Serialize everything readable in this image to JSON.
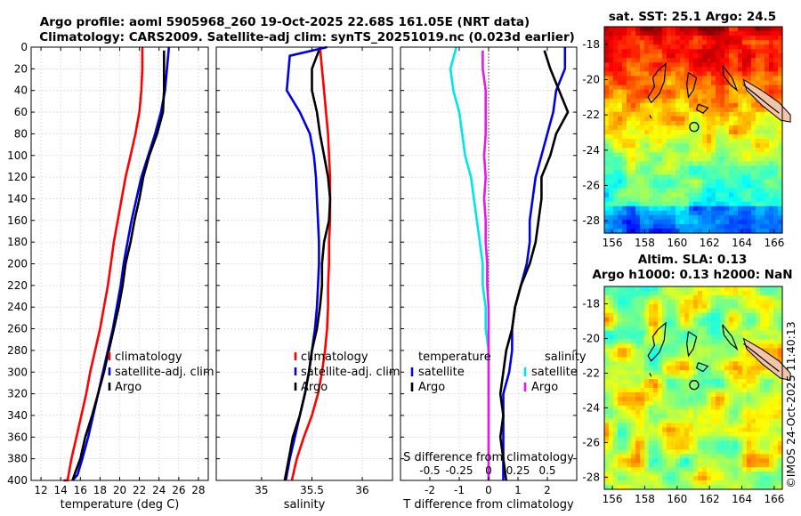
{
  "header": {
    "line1": "Argo profile: aoml 5905968_260 19-Oct-2025 22.68S 161.05E (NRT data)",
    "line2": "Climatology: CARS2009. Satellite-adj clim: synTS_20251019.nc (0.023d earlier)"
  },
  "colors": {
    "clim": "#ff0000",
    "sat": "#0000e6",
    "argo": "#000000",
    "sat_s": "#00e6e6",
    "sal_diff": "#e619e6",
    "land": "#f2c4a8"
  },
  "chart_data": [
    {
      "type": "line",
      "id": "temp",
      "title": "",
      "xlabel": "temperature (deg C)",
      "ylabel": "",
      "xlim": [
        11,
        29
      ],
      "ylim": [
        400,
        0
      ],
      "xticks": [
        12,
        14,
        16,
        18,
        20,
        22,
        24,
        26,
        28
      ],
      "yticks": [
        0,
        20,
        40,
        60,
        80,
        100,
        120,
        140,
        160,
        180,
        200,
        220,
        240,
        260,
        280,
        300,
        320,
        340,
        360,
        380,
        400
      ],
      "series": [
        {
          "name": "climatology",
          "color": "#ff0000",
          "x": [
            22.3,
            22.3,
            22.2,
            22.0,
            21.6,
            21.1,
            20.6,
            20.2,
            19.8,
            19.4,
            19.1,
            18.8,
            18.4,
            18.0,
            17.5,
            17.0,
            16.6,
            16.1,
            15.6,
            15.1,
            14.7,
            14.3
          ],
          "y": [
            0,
            20,
            40,
            60,
            80,
            100,
            120,
            140,
            160,
            180,
            200,
            220,
            240,
            260,
            280,
            300,
            320,
            340,
            360,
            380,
            400,
            400
          ]
        },
        {
          "name": "satellite-adj. clim",
          "color": "#0000e6",
          "x": [
            25.0,
            24.8,
            24.6,
            24.2,
            23.6,
            22.9,
            22.2,
            21.7,
            21.2,
            20.8,
            20.4,
            20.1,
            19.7,
            19.3,
            18.8,
            18.3,
            17.8,
            17.3,
            16.8,
            16.2,
            15.7,
            15.2
          ],
          "y": [
            0,
            20,
            40,
            60,
            80,
            100,
            120,
            140,
            160,
            180,
            200,
            220,
            240,
            260,
            280,
            300,
            320,
            340,
            360,
            380,
            395,
            400
          ]
        },
        {
          "name": "Argo",
          "color": "#000000",
          "x": [
            24.5,
            24.5,
            24.5,
            24.4,
            23.8,
            23.0,
            22.4,
            22.0,
            21.5,
            21.1,
            20.6,
            20.3,
            19.9,
            19.4,
            18.9,
            18.4,
            17.8,
            17.2,
            16.5,
            16.0,
            15.5,
            15.2
          ],
          "y": [
            3,
            20,
            40,
            60,
            80,
            100,
            120,
            140,
            160,
            180,
            200,
            220,
            240,
            260,
            280,
            300,
            320,
            340,
            360,
            380,
            392,
            400
          ]
        }
      ],
      "legend": [
        "climatology",
        "satellite-adj. clim",
        "Argo"
      ]
    },
    {
      "type": "line",
      "id": "sal",
      "xlabel": "salinity",
      "ylabel": "",
      "xlim": [
        34.55,
        36.3
      ],
      "ylim": [
        400,
        0
      ],
      "xticks": [
        35,
        35.5,
        36
      ],
      "series": [
        {
          "name": "climatology",
          "color": "#ff0000",
          "x": [
            35.58,
            35.6,
            35.62,
            35.64,
            35.66,
            35.67,
            35.68,
            35.68,
            35.68,
            35.67,
            35.67,
            35.66,
            35.66,
            35.65,
            35.63,
            35.6,
            35.56,
            35.5,
            35.42,
            35.35,
            35.3
          ],
          "y": [
            0,
            20,
            40,
            60,
            80,
            100,
            120,
            140,
            160,
            180,
            200,
            220,
            240,
            260,
            280,
            300,
            320,
            340,
            360,
            380,
            400
          ]
        },
        {
          "name": "satellite-adj. clim",
          "color": "#0000e6",
          "x": [
            35.65,
            35.28,
            35.25,
            35.38,
            35.48,
            35.52,
            35.54,
            35.55,
            35.56,
            35.57,
            35.57,
            35.56,
            35.55,
            35.53,
            35.5,
            35.47,
            35.43,
            35.38,
            35.33,
            35.28,
            35.24
          ],
          "y": [
            0,
            8,
            40,
            60,
            80,
            100,
            120,
            140,
            160,
            180,
            200,
            220,
            240,
            260,
            280,
            300,
            320,
            340,
            360,
            380,
            400
          ]
        },
        {
          "name": "Argo",
          "color": "#000000",
          "x": [
            35.57,
            35.5,
            35.5,
            35.55,
            35.58,
            35.62,
            35.66,
            35.68,
            35.67,
            35.62,
            35.6,
            35.6,
            35.58,
            35.55,
            35.5,
            35.47,
            35.43,
            35.38,
            35.31,
            35.27,
            35.23
          ],
          "y": [
            3,
            20,
            40,
            60,
            80,
            100,
            120,
            140,
            160,
            180,
            200,
            220,
            240,
            260,
            280,
            300,
            320,
            340,
            360,
            380,
            400
          ]
        }
      ],
      "legend": [
        "climatology",
        "satellite-adj. clim",
        "Argo"
      ]
    },
    {
      "type": "line",
      "id": "diff",
      "xlabel": "T difference from climatology",
      "ylabel": "",
      "xlim": [
        -3,
        3
      ],
      "ylim": [
        400,
        0
      ],
      "xticks": [
        -2,
        -1,
        0,
        1,
        2
      ],
      "top_xlabel": "S difference from climatology",
      "top_xticks": [
        "-0.5",
        "-0.25",
        "0",
        "0.25",
        "0.5"
      ],
      "series": [
        {
          "name": "temperature satellite",
          "color": "#0000e6",
          "x": [
            2.6,
            2.6,
            2.3,
            2.2,
            2.0,
            1.8,
            1.6,
            1.5,
            1.4,
            1.4,
            1.3,
            1.1,
            0.9,
            0.8,
            0.8,
            0.7,
            0.5,
            0.5,
            0.5,
            0.5,
            0.5
          ],
          "y": [
            0,
            20,
            40,
            60,
            80,
            100,
            120,
            140,
            160,
            180,
            200,
            220,
            240,
            260,
            280,
            300,
            320,
            340,
            360,
            380,
            400
          ]
        },
        {
          "name": "temperature Argo",
          "color": "#000000",
          "x": [
            1.9,
            2.1,
            2.4,
            2.7,
            2.3,
            2.1,
            1.8,
            1.8,
            1.7,
            1.6,
            1.4,
            1.1,
            0.9,
            0.8,
            0.6,
            0.5,
            0.4,
            0.5,
            0.4,
            0.5,
            0.6
          ],
          "y": [
            3,
            20,
            40,
            60,
            80,
            100,
            120,
            140,
            160,
            180,
            200,
            220,
            240,
            260,
            280,
            300,
            320,
            340,
            360,
            380,
            400
          ]
        },
        {
          "name": "salinity satellite",
          "color": "#00e6e6",
          "x": [
            -1.1,
            -1.3,
            -1.2,
            -1.0,
            -0.9,
            -0.8,
            -0.6,
            -0.5,
            -0.4,
            -0.3,
            -0.2,
            -0.2,
            -0.1,
            -0.1,
            0,
            0,
            0,
            0,
            0,
            0,
            0
          ],
          "y": [
            0,
            20,
            40,
            60,
            80,
            100,
            120,
            140,
            160,
            180,
            200,
            220,
            240,
            260,
            280,
            300,
            320,
            340,
            360,
            380,
            400
          ]
        },
        {
          "name": "salinity Argo",
          "color": "#e619e6",
          "x": [
            -0.2,
            -0.2,
            -0.1,
            -0.1,
            -0.1,
            -0.15,
            -0.1,
            -0.15,
            -0.1,
            -0.1,
            -0.05,
            -0.05,
            0,
            0,
            0,
            0,
            0,
            0,
            0,
            0,
            0
          ],
          "y": [
            3,
            20,
            40,
            60,
            80,
            100,
            120,
            140,
            160,
            180,
            200,
            220,
            240,
            260,
            280,
            300,
            320,
            340,
            360,
            380,
            400
          ]
        }
      ],
      "legend": {
        "t_title": "temperature",
        "s_title": "salinity",
        "t_sat": "satellite",
        "t_argo": "Argo",
        "s_sat": "satellite",
        "s_argo": "Argo"
      }
    },
    {
      "type": "heatmap",
      "id": "sst",
      "title": "sat. SST: 25.1 Argo: 24.5",
      "xlim": [
        155.5,
        166.5
      ],
      "ylim": [
        -28.7,
        -17
      ],
      "xticks": [
        156,
        158,
        160,
        162,
        164,
        166
      ],
      "yticks": [
        -18,
        -20,
        -22,
        -24,
        -26,
        -28
      ],
      "marker": {
        "lon": 161.05,
        "lat": -22.68
      }
    },
    {
      "type": "heatmap",
      "id": "sla",
      "title": "Altim. SLA: 0.13",
      "subtitle": "Argo h1000: 0.13 h2000: NaN",
      "xlim": [
        155.5,
        166.5
      ],
      "ylim": [
        -28.7,
        -17
      ],
      "xticks": [
        156,
        158,
        160,
        162,
        164,
        166
      ],
      "yticks": [
        -18,
        -20,
        -22,
        -24,
        -26,
        -28
      ],
      "marker": {
        "lon": 161.05,
        "lat": -22.68
      }
    }
  ],
  "credit": "©IMOS 24-Oct-2025 11:40:13"
}
